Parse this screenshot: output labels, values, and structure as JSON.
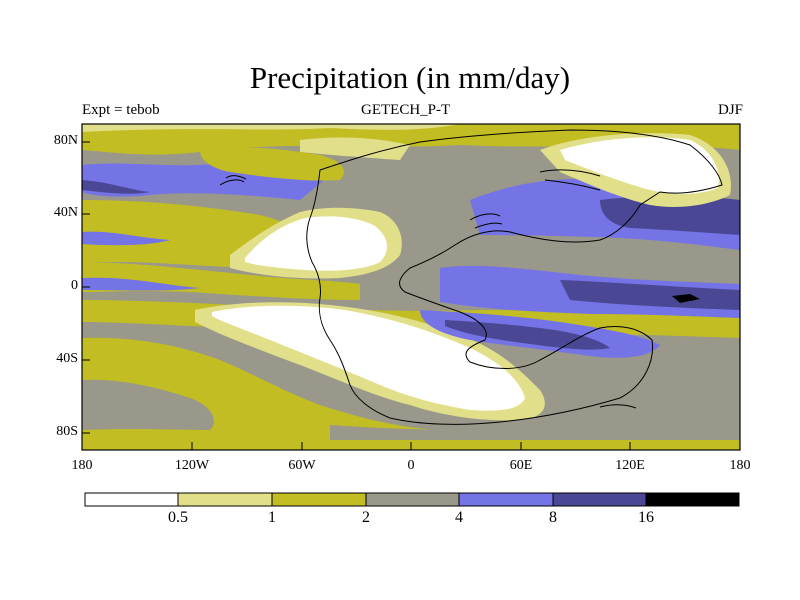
{
  "title": "Precipitation (in mm/day)",
  "subtitle_left": "Expt = tebob",
  "subtitle_center": "GETECH_P-T",
  "subtitle_right": "DJF",
  "lat_labels": [
    "80N",
    "40N",
    "0",
    "40S",
    "80S"
  ],
  "lon_labels": [
    "180",
    "120W",
    "60W",
    "0",
    "60E",
    "120E",
    "180"
  ],
  "colorbar": {
    "labels": [
      "0.5",
      "1",
      "2",
      "4",
      "8",
      "16"
    ],
    "colors": [
      "#ffffff",
      "#e2df8a",
      "#c2bd22",
      "#99988a",
      "#7574e6",
      "#4a4895",
      "#000000"
    ]
  }
}
